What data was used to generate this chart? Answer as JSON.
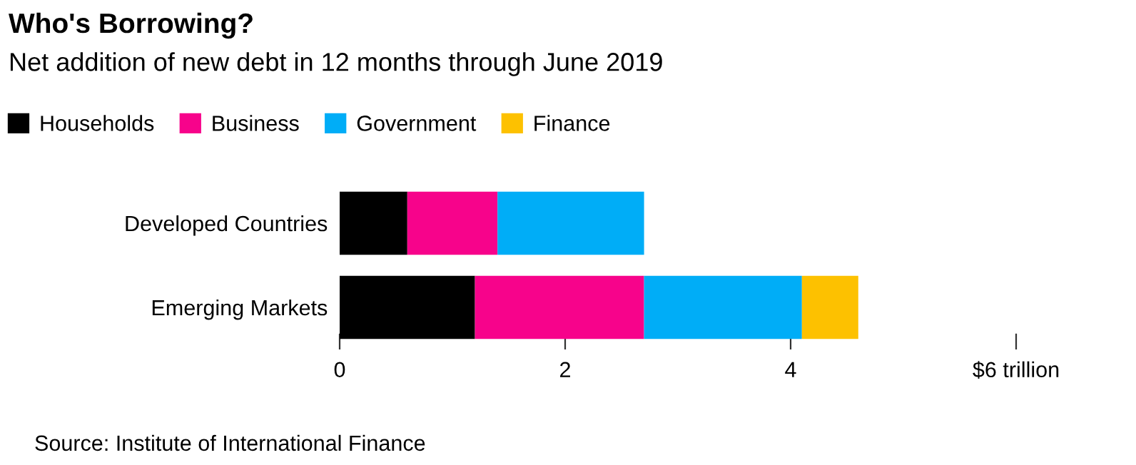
{
  "chart_data": {
    "type": "bar",
    "orientation": "horizontal",
    "stacked": true,
    "title": "Who's Borrowing?",
    "subtitle": "Net addition of new debt in 12 months through June 2019",
    "categories": [
      "Developed Countries",
      "Emerging Markets"
    ],
    "series": [
      {
        "name": "Households",
        "color": "#000000",
        "values": [
          0.6,
          1.2
        ]
      },
      {
        "name": "Business",
        "color": "#f7038b",
        "values": [
          0.8,
          1.5
        ]
      },
      {
        "name": "Government",
        "color": "#00adf7",
        "values": [
          1.3,
          1.4
        ]
      },
      {
        "name": "Finance",
        "color": "#fdc100",
        "values": [
          null,
          0.5
        ]
      }
    ],
    "xlim": [
      0,
      6
    ],
    "xticks": [
      0,
      2,
      4,
      {
        "value": 6,
        "label": "$6 trillion"
      }
    ],
    "grid": false,
    "legend": "top left",
    "annotations": [
      "Source: Institute of International Finance"
    ]
  }
}
